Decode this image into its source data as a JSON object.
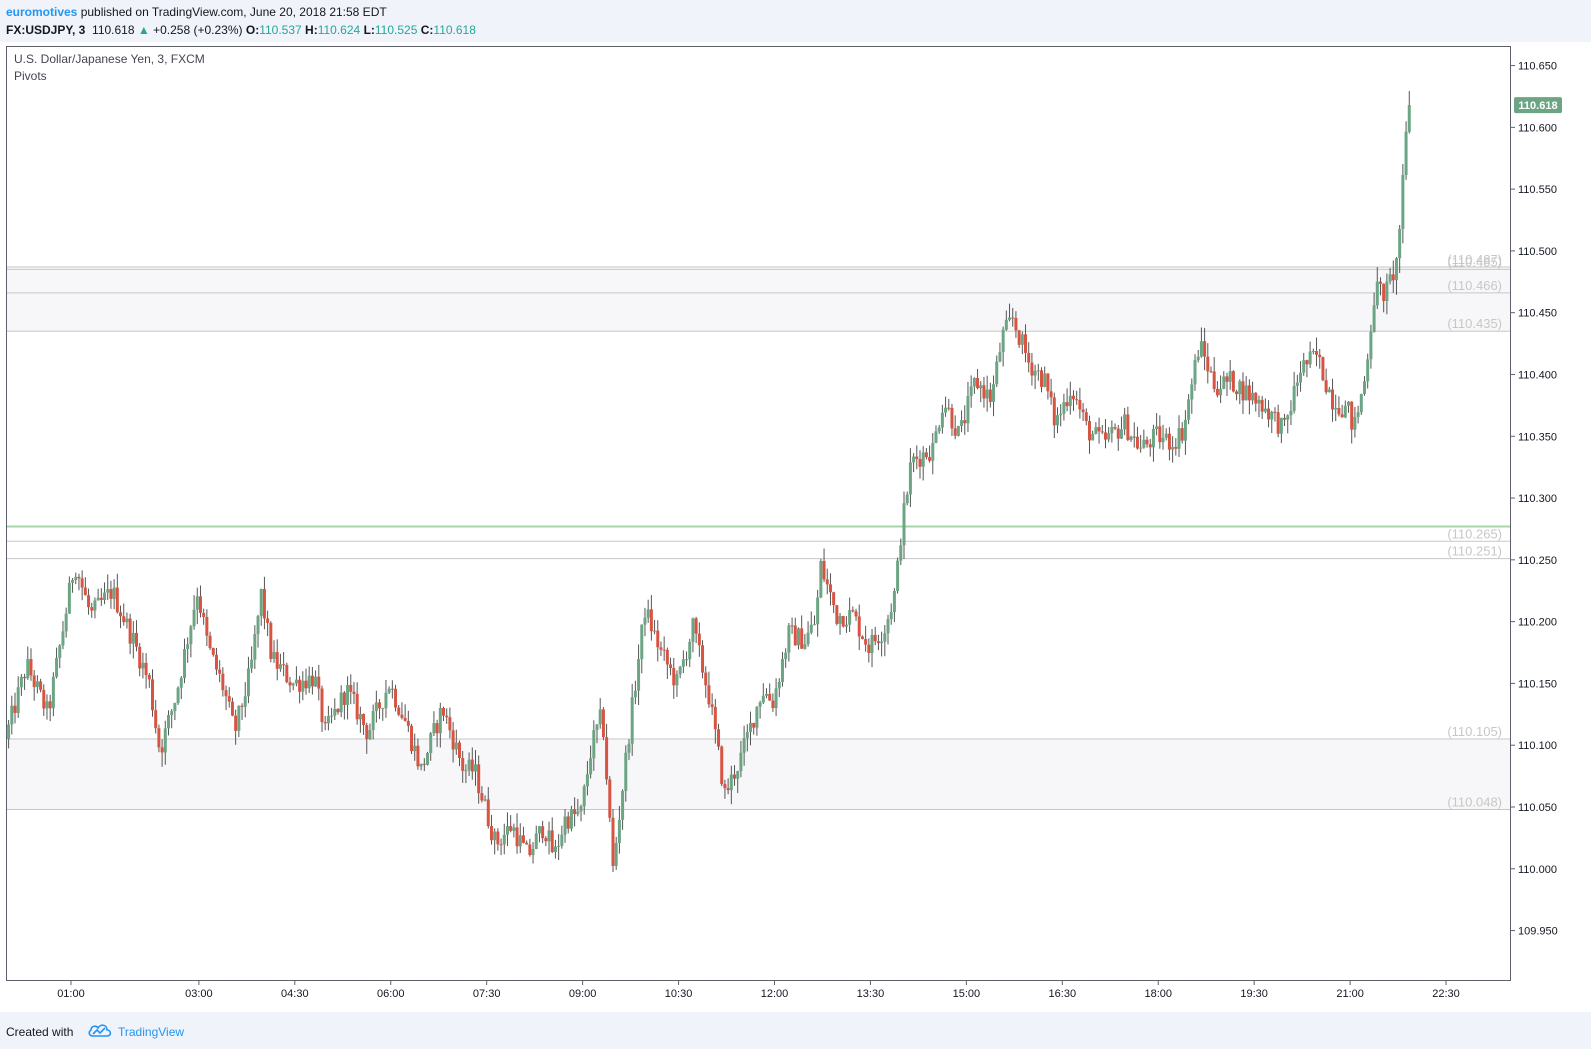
{
  "header": {
    "author": "euromotives",
    "published_text": "published on TradingView.com, June 20, 2018 21:58 EDT",
    "symbol": "FX:USDJPY, 3",
    "last": "110.618",
    "change": "+0.258 (+0.23%)",
    "o_label": "O:",
    "o_value": "110.537",
    "h_label": "H:",
    "h_value": "110.624",
    "l_label": "L:",
    "l_value": "110.525",
    "c_label": "C:",
    "c_value": "110.618"
  },
  "legend": {
    "title": "U.S. Dollar/Japanese Yen, 3, FXCM",
    "indicator": "Pivots"
  },
  "footer": {
    "created_with": "Created with",
    "brand": "TradingView"
  },
  "colors": {
    "up": "#6ba583",
    "down": "#d75442",
    "pivot_line": "#c7c7c7",
    "pivot_label": "#c7c7c7",
    "price_tag": "#6ba583",
    "green_level": "#a5d6a7"
  },
  "chart_data": {
    "type": "candlestick",
    "title": "U.S. Dollar/Japanese Yen, 3, FXCM",
    "ylim": [
      109.91,
      110.665
    ],
    "y_ticks": [
      "110.650",
      "110.600",
      "110.550",
      "110.500",
      "110.450",
      "110.400",
      "110.350",
      "110.300",
      "110.250",
      "110.200",
      "110.150",
      "110.100",
      "110.050",
      "110.000",
      "109.950"
    ],
    "x_ticks": [
      "01:00",
      "03:00",
      "04:30",
      "06:00",
      "07:30",
      "09:00",
      "10:30",
      "12:00",
      "13:30",
      "15:00",
      "16:30",
      "18:00",
      "19:30",
      "21:00",
      "22:30"
    ],
    "x_range": [
      "00:00",
      "23:30"
    ],
    "last_price": "110.618",
    "green_level": 110.277,
    "pivots": [
      {
        "value": 110.487,
        "label": "(110.487)",
        "segment": "upper"
      },
      {
        "value": 110.485,
        "label": "(110.485)",
        "segment": "upper"
      },
      {
        "value": 110.466,
        "label": "(110.466)",
        "segment": "upper"
      },
      {
        "value": 110.435,
        "label": "(110.435)",
        "segment": "upper"
      },
      {
        "value": 110.265,
        "label": "(110.265)",
        "segment": "middle"
      },
      {
        "value": 110.251,
        "label": "(110.251)",
        "segment": "middle"
      },
      {
        "value": 110.105,
        "label": "(110.105)",
        "segment": "lower"
      },
      {
        "value": 110.048,
        "label": "(110.048)",
        "segment": "lower"
      }
    ],
    "path": [
      [
        "00:00",
        110.105
      ],
      [
        "00:20",
        110.165
      ],
      [
        "00:40",
        110.125
      ],
      [
        "01:05",
        110.248
      ],
      [
        "01:20",
        110.205
      ],
      [
        "01:40",
        110.225
      ],
      [
        "02:00",
        110.185
      ],
      [
        "02:15",
        110.15
      ],
      [
        "02:25",
        110.095
      ],
      [
        "02:40",
        110.14
      ],
      [
        "03:00",
        110.225
      ],
      [
        "03:10",
        110.18
      ],
      [
        "03:25",
        110.145
      ],
      [
        "03:35",
        110.11
      ],
      [
        "03:50",
        110.16
      ],
      [
        "04:00",
        110.222
      ],
      [
        "04:10",
        110.17
      ],
      [
        "04:30",
        110.15
      ],
      [
        "04:50",
        110.155
      ],
      [
        "05:00",
        110.11
      ],
      [
        "05:20",
        110.145
      ],
      [
        "05:40",
        110.11
      ],
      [
        "06:00",
        110.15
      ],
      [
        "06:15",
        110.12
      ],
      [
        "06:30",
        110.08
      ],
      [
        "06:50",
        110.13
      ],
      [
        "07:10",
        110.08
      ],
      [
        "07:20",
        110.08
      ],
      [
        "07:30",
        110.05
      ],
      [
        "07:40",
        110.02
      ],
      [
        "07:55",
        110.035
      ],
      [
        "08:10",
        110.01
      ],
      [
        "08:25",
        110.035
      ],
      [
        "08:35",
        110.01
      ],
      [
        "08:45",
        110.04
      ],
      [
        "09:00",
        110.045
      ],
      [
        "09:10",
        110.1
      ],
      [
        "09:20",
        110.125
      ],
      [
        "09:30",
        110.0
      ],
      [
        "09:45",
        110.11
      ],
      [
        "10:00",
        110.21
      ],
      [
        "10:15",
        110.175
      ],
      [
        "10:30",
        110.15
      ],
      [
        "10:45",
        110.195
      ],
      [
        "11:00",
        110.14
      ],
      [
        "11:15",
        110.06
      ],
      [
        "11:30",
        110.09
      ],
      [
        "11:50",
        110.145
      ],
      [
        "12:00",
        110.135
      ],
      [
        "12:15",
        110.19
      ],
      [
        "12:30",
        110.185
      ],
      [
        "12:40",
        110.2
      ],
      [
        "12:45",
        110.245
      ],
      [
        "13:00",
        110.205
      ],
      [
        "13:15",
        110.205
      ],
      [
        "13:30",
        110.18
      ],
      [
        "13:45",
        110.195
      ],
      [
        "13:55",
        110.225
      ],
      [
        "14:00",
        110.27
      ],
      [
        "14:10",
        110.33
      ],
      [
        "14:30",
        110.34
      ],
      [
        "14:40",
        110.38
      ],
      [
        "14:55",
        110.35
      ],
      [
        "15:10",
        110.395
      ],
      [
        "15:25",
        110.38
      ],
      [
        "15:35",
        110.43
      ],
      [
        "15:45",
        110.445
      ],
      [
        "16:00",
        110.41
      ],
      [
        "16:15",
        110.395
      ],
      [
        "16:25",
        110.36
      ],
      [
        "16:40",
        110.39
      ],
      [
        "16:55",
        110.355
      ],
      [
        "17:10",
        110.345
      ],
      [
        "17:30",
        110.36
      ],
      [
        "17:45",
        110.34
      ],
      [
        "18:00",
        110.35
      ],
      [
        "18:15",
        110.345
      ],
      [
        "18:25",
        110.355
      ],
      [
        "18:40",
        110.425
      ],
      [
        "18:55",
        110.39
      ],
      [
        "19:10",
        110.395
      ],
      [
        "19:25",
        110.385
      ],
      [
        "19:40",
        110.375
      ],
      [
        "19:50",
        110.365
      ],
      [
        "20:00",
        110.355
      ],
      [
        "20:15",
        110.405
      ],
      [
        "20:30",
        110.415
      ],
      [
        "20:45",
        110.38
      ],
      [
        "21:00",
        110.37
      ],
      [
        "21:05",
        110.355
      ],
      [
        "21:15",
        110.395
      ],
      [
        "21:25",
        110.47
      ],
      [
        "21:35",
        110.465
      ],
      [
        "21:45",
        110.49
      ],
      [
        "21:50",
        110.54
      ],
      [
        "21:56",
        110.618
      ]
    ]
  }
}
